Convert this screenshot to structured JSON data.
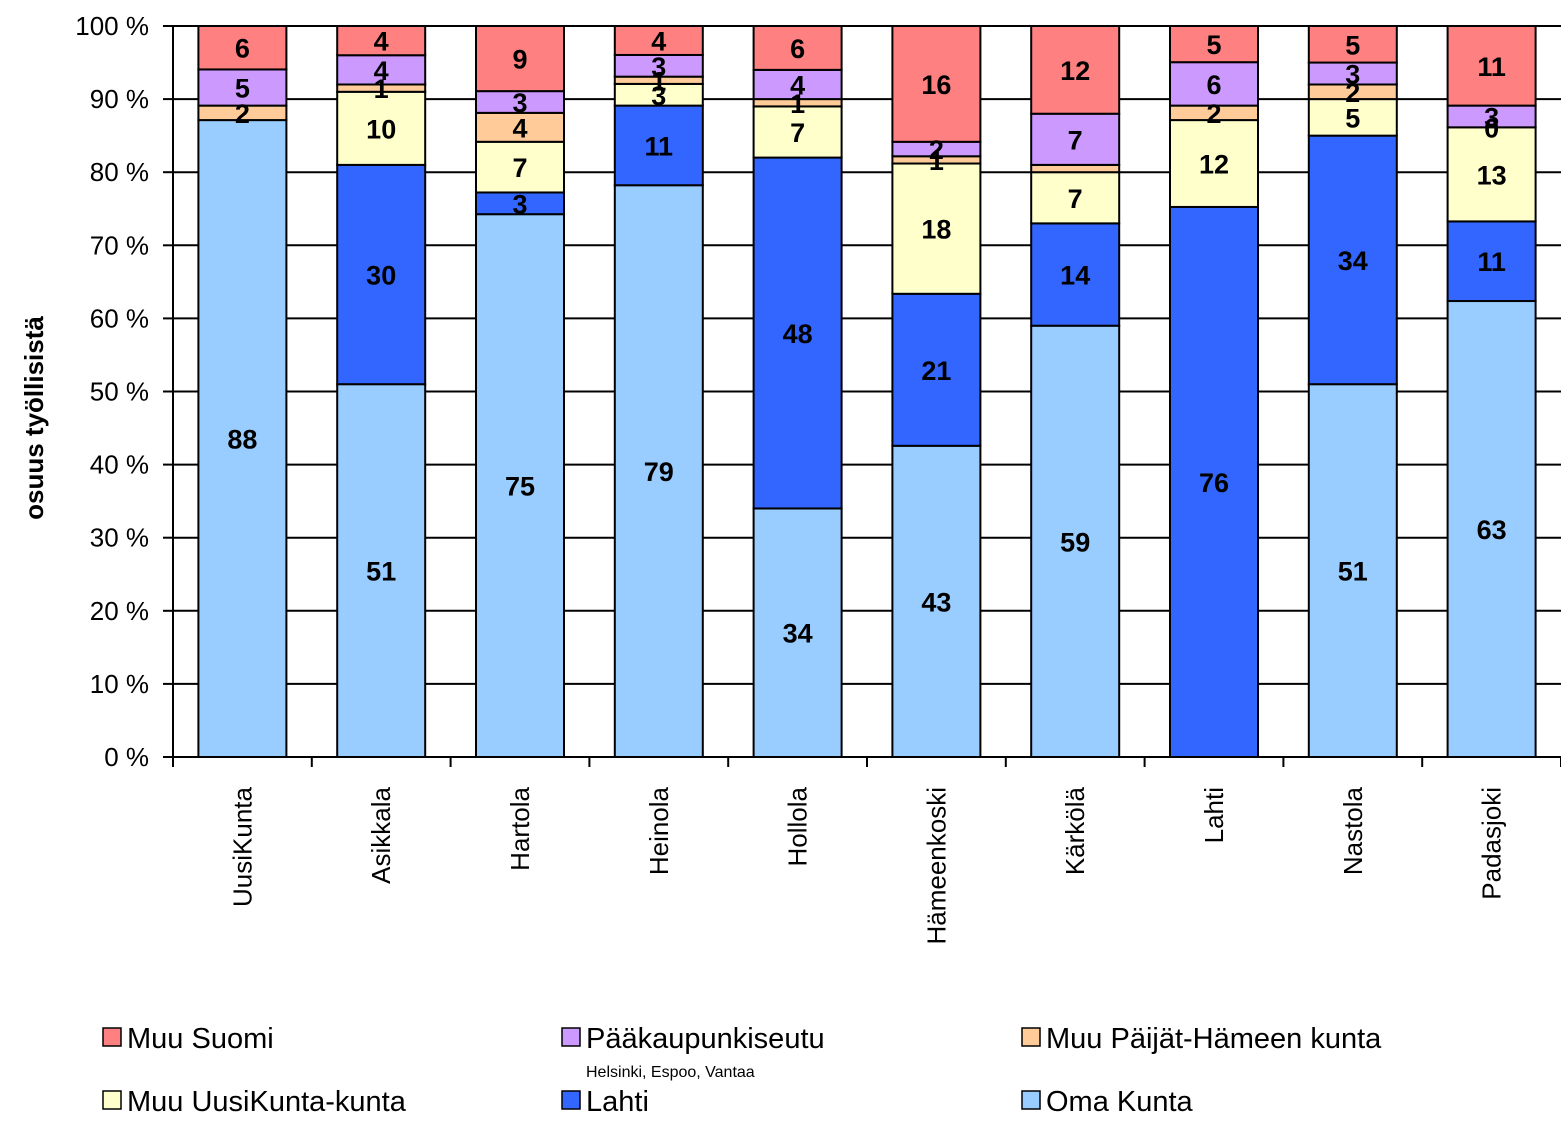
{
  "chart_data": {
    "type": "bar",
    "stacked": true,
    "percent": true,
    "ylabel": "osuus työllisistä",
    "ylim": [
      0,
      100
    ],
    "yticks": [
      "0 %",
      "10 %",
      "20 %",
      "30 %",
      "40 %",
      "50 %",
      "60 %",
      "70 %",
      "80 %",
      "90 %",
      "100 %"
    ],
    "grid": true,
    "legend_position": "bottom",
    "categories": [
      "UusiKunta",
      "Asikkala",
      "Hartola",
      "Heinola",
      "Hollola",
      "Hämeenkoski",
      "Kärkölä",
      "Lahti",
      "Nastola",
      "Padasjoki"
    ],
    "series": [
      {
        "name": "Oma Kunta",
        "color": "#99ccff",
        "values": [
          88,
          51,
          75,
          79,
          34,
          43,
          59,
          0,
          51,
          63
        ]
      },
      {
        "name": "Lahti",
        "color": "#3366ff",
        "values": [
          0,
          30,
          3,
          11,
          48,
          21,
          14,
          76,
          34,
          11
        ]
      },
      {
        "name": "Muu UusiKunta-kunta",
        "color": "#ffffcc",
        "values": [
          0,
          10,
          7,
          3,
          7,
          18,
          7,
          12,
          5,
          13
        ]
      },
      {
        "name": "Muu Päijät-Hämeen kunta",
        "color": "#ffcc99",
        "values": [
          2,
          1,
          4,
          1,
          1,
          1,
          1,
          2,
          2,
          0
        ]
      },
      {
        "name": "Pääkaupunkiseutu",
        "subtitle": "Helsinki, Espoo, Vantaa",
        "color": "#cc99ff",
        "values": [
          5,
          4,
          3,
          3,
          4,
          2,
          7,
          6,
          3,
          3
        ]
      },
      {
        "name": "Muu Suomi",
        "color": "#ff8080",
        "values": [
          6,
          4,
          9,
          4,
          6,
          16,
          12,
          5,
          5,
          11
        ]
      }
    ],
    "segment_labels": [
      [
        "88",
        "",
        "",
        "2",
        "5",
        "6"
      ],
      [
        "51",
        "30",
        "10",
        "1",
        "4",
        "4"
      ],
      [
        "75",
        "3",
        "7",
        "4",
        "3",
        "9"
      ],
      [
        "79",
        "11",
        "3",
        "1",
        "3",
        "4"
      ],
      [
        "34",
        "48",
        "7",
        "1",
        "4",
        "6"
      ],
      [
        "43",
        "21",
        "18",
        "1",
        "2",
        "16"
      ],
      [
        "59",
        "14",
        "7",
        "",
        "7",
        "12"
      ],
      [
        "",
        "76",
        "12",
        "2",
        "6",
        "5"
      ],
      [
        "51",
        "34",
        "5",
        "2",
        "3",
        "5"
      ],
      [
        "63",
        "11",
        "13",
        "0",
        "3",
        "11"
      ]
    ],
    "legend_order": [
      5,
      4,
      3,
      2,
      1,
      0
    ]
  }
}
